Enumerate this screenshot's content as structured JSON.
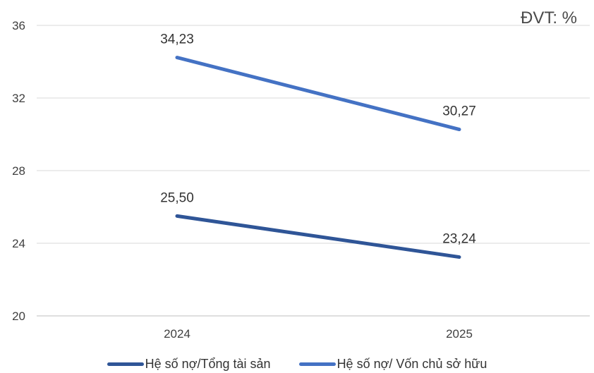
{
  "chart_data": {
    "type": "line",
    "categories": [
      "2024",
      "2025"
    ],
    "ylim": [
      20,
      36
    ],
    "yticks": [
      20,
      24,
      28,
      32,
      36
    ],
    "grid": "horizontal",
    "legend_position": "bottom",
    "unit_label": "ĐVT: %",
    "series": [
      {
        "name": "Hệ số nợ/Tổng tài sản",
        "values": [
          25.5,
          23.24
        ],
        "labels": [
          "25,50",
          "23,24"
        ],
        "color": "#2f5597"
      },
      {
        "name": "Hệ số nợ/ Vốn chủ sở hữu",
        "values": [
          34.23,
          30.27
        ],
        "labels": [
          "34,23",
          "30,27"
        ],
        "color": "#4472c4"
      }
    ]
  }
}
